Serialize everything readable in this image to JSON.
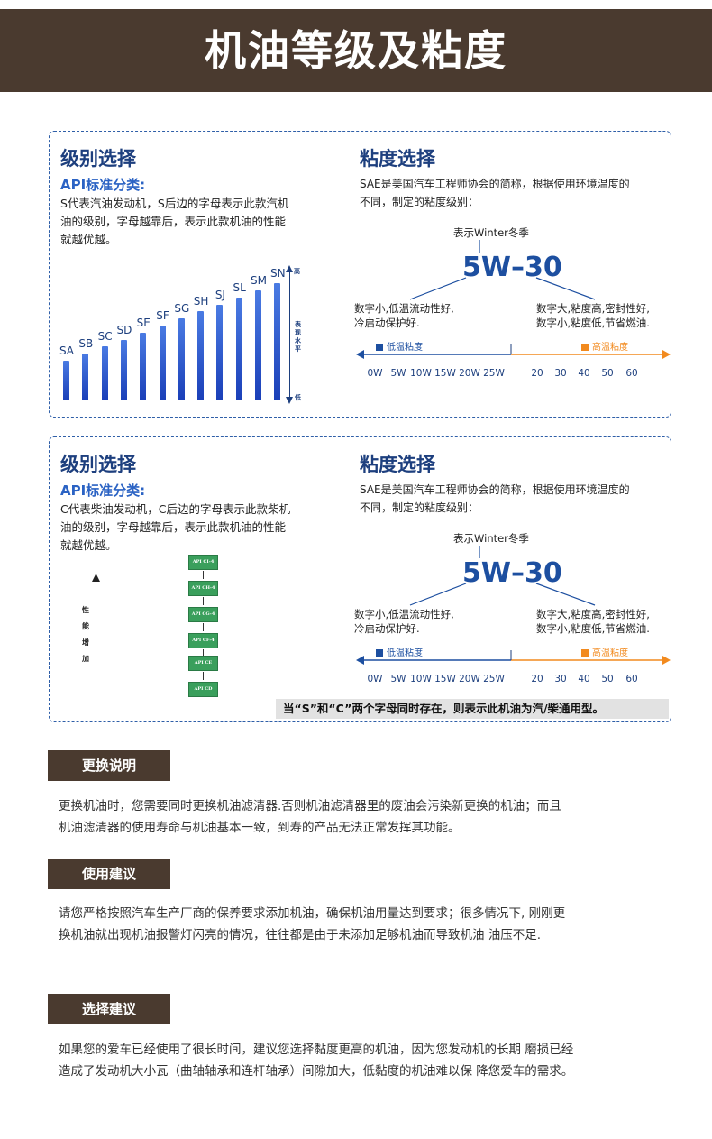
{
  "banner": {
    "title": "机油等级及粘度"
  },
  "panel1": {
    "grade_heading": "级别选择",
    "api_subheading": "API标准分类:",
    "api_desc_lines": [
      "S代表汽油发动机，S后边的字母表示此款汽机",
      "油的级别，字母越靠后，表示此款机油的性能",
      "就越优越。"
    ],
    "bars": [
      {
        "label": "SA",
        "level": 1
      },
      {
        "label": "SB",
        "level": 2
      },
      {
        "label": "SC",
        "level": 3
      },
      {
        "label": "SD",
        "level": 4
      },
      {
        "label": "SE",
        "level": 5
      },
      {
        "label": "SF",
        "level": 6
      },
      {
        "label": "SG",
        "level": 7
      },
      {
        "label": "SH",
        "level": 8
      },
      {
        "label": "SJ",
        "level": 9
      },
      {
        "label": "SL",
        "level": 10
      },
      {
        "label": "SM",
        "level": 11
      },
      {
        "label": "SN",
        "level": 12
      }
    ],
    "axis_high": "高",
    "axis_mid": [
      "表",
      "现",
      "水",
      "平"
    ],
    "axis_low": "低"
  },
  "panel2": {
    "grade_heading": "级别选择",
    "api_subheading": "API标准分类:",
    "api_desc_lines": [
      "C代表柴油发动机，C后边的字母表示此款柴机",
      "油的级别，字母越靠后，表示此款机油的性能",
      "就越优越。"
    ],
    "api_boxes": [
      "API CI-4",
      "API CH-4",
      "API CG-4",
      "API CF-4",
      "API CE",
      "API CD"
    ],
    "perf_chars": [
      "性",
      "能",
      "增",
      "加"
    ],
    "note": "当“S”和“C”两个字母同时存在，则表示此机油为汽/柴通用型。"
  },
  "sae": {
    "heading": "粘度选择",
    "desc_lines": [
      "SAE是美国汽车工程师协会的简称，根据使用环境温度的",
      "不同，制定的粘度级别："
    ],
    "winter_label": "表示Winter冬季",
    "code": "5W–30",
    "left_lines": [
      "数字小,低温流动性好,",
      "冷启动保护好."
    ],
    "right_lines": [
      "数字大,粘度高,密封性好,",
      "数字小,粘度低,节省燃油."
    ],
    "low_legend": "低温粘度",
    "high_legend": "高温粘度",
    "low_ticks": [
      "0W",
      "5W",
      "10W",
      "15W",
      "20W",
      "25W"
    ],
    "high_ticks": [
      "20",
      "30",
      "40",
      "50",
      "60"
    ],
    "colors": {
      "blue": "#1d4fa0",
      "orange": "#f28a1e"
    }
  },
  "sections": [
    {
      "title": "更换说明",
      "lines": [
        "更换机油时，您需要同时更换机油滤清器.否则机油滤清器里的废油会污染新更换的机油；而且",
        "机油滤清器的使用寿命与机油基本一致，到寿的产品无法正常发挥其功能。"
      ]
    },
    {
      "title": "使用建议",
      "lines": [
        "请您严格按照汽车生产厂商的保养要求添加机油，确保机油用量达到要求；很多情况下, 刚刚更",
        "换机油就出现机油报警灯闪亮的情况，往往都是由于未添加足够机油而导致机油 油压不足."
      ]
    },
    {
      "title": "选择建议",
      "lines": [
        "如果您的爱车已经使用了很长时间，建议您选择黏度更高的机油，因为您发动机的长期 磨损已经",
        "造成了发动机大小瓦（曲轴轴承和连杆轴承）间隙加大，低黏度的机油难以保 降您爱车的需求。"
      ]
    }
  ]
}
